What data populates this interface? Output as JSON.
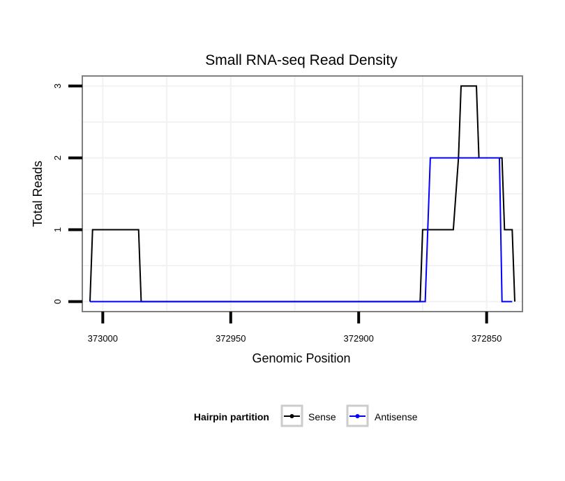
{
  "chart_data": {
    "type": "line",
    "title": "Small RNA-seq Read Density",
    "xlabel": "Genomic Position",
    "ylabel": "Total Reads",
    "x_reversed": true,
    "xlim": [
      373008,
      372836
    ],
    "ylim": [
      -0.14,
      3.14
    ],
    "x_ticks": [
      373000,
      372950,
      372900,
      372850
    ],
    "y_ticks": [
      0,
      1,
      2,
      3
    ],
    "grid": true,
    "legend": {
      "title": "Hairpin partition",
      "position": "bottom"
    },
    "series": [
      {
        "name": "Sense",
        "color": "#000000",
        "points": [
          [
            373005,
            0
          ],
          [
            373004,
            1
          ],
          [
            372986,
            1
          ],
          [
            372985,
            0
          ],
          [
            372876,
            0
          ],
          [
            372875,
            1
          ],
          [
            372863,
            1
          ],
          [
            372861,
            2
          ],
          [
            372860,
            3
          ],
          [
            372854,
            3
          ],
          [
            372853,
            2
          ],
          [
            372844,
            2
          ],
          [
            372843,
            1
          ],
          [
            372840,
            1
          ],
          [
            372839,
            0
          ]
        ]
      },
      {
        "name": "Antisense",
        "color": "#0000ff",
        "points": [
          [
            373005,
            0
          ],
          [
            372874,
            0
          ],
          [
            372872,
            2
          ],
          [
            372845,
            2
          ],
          [
            372844,
            0
          ],
          [
            372840,
            0
          ]
        ]
      }
    ]
  }
}
